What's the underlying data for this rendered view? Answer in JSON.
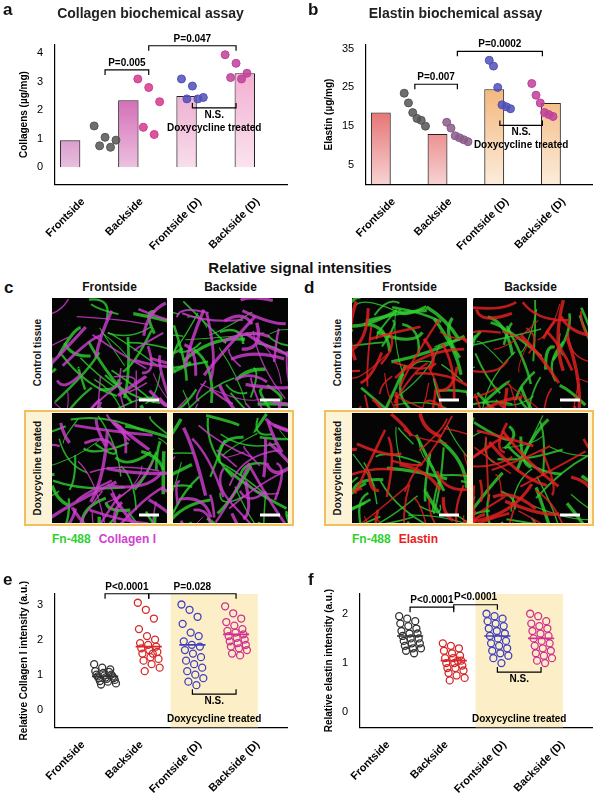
{
  "chart_data": [
    {
      "panel": "a",
      "type": "bar",
      "title": "Collagen biochemical assay",
      "y_label": "Collagens (µg/mg)",
      "categories": [
        "Frontside",
        "Backside",
        "Frontside (D)",
        "Backside (D)"
      ],
      "values": [
        0.95,
        2.35,
        2.5,
        3.3
      ],
      "colors": [
        "#b0278f",
        "#c02c96",
        "#e890c0",
        "#f0a0c8"
      ],
      "points": [
        [
          1.45,
          1.05,
          0.95,
          0.75,
          0.7
        ],
        [
          3.1,
          2.8,
          2.3,
          1.4,
          1.15
        ],
        [
          3.1,
          2.85,
          2.45,
          2.4,
          2.4
        ],
        [
          3.95,
          3.65,
          3.3,
          3.15,
          3.1
        ]
      ],
      "point_colors": [
        "#555555",
        "#d43a8c",
        "#5050b8",
        "#c0409a"
      ],
      "marker": "circle",
      "ylim": [
        -0.6,
        4.3
      ],
      "yticks": [
        0,
        1,
        2,
        3,
        4
      ],
      "grid": false,
      "annotations": [
        {
          "text": "P=0.005",
          "between": [
            "Frontside",
            "Backside"
          ]
        },
        {
          "text": "P=0.047",
          "between": [
            "Backside",
            "Backside (D)"
          ]
        }
      ],
      "annotations_below": [
        {
          "text": "N.S.",
          "between": [
            "Frontside (D)",
            "Backside (D)"
          ]
        }
      ],
      "highlight": {
        "text": "Doxycycline treated",
        "categories": [
          "Frontside (D)",
          "Backside (D)"
        ]
      }
    },
    {
      "panel": "b",
      "type": "bar",
      "title": "Elastin biochemical assay",
      "y_label": "Elastin (µg/mg)",
      "categories": [
        "Frontside",
        "Backside",
        "Frontside (D)",
        "Backside (D)"
      ],
      "values": [
        18.5,
        13,
        24.5,
        21
      ],
      "colors": [
        "#d81e1e",
        "#d81e1e",
        "#f0a050",
        "#f0a050"
      ],
      "points": [
        [
          23.5,
          21,
          18.5,
          17,
          16.5,
          15
        ],
        [
          16,
          14.5,
          12.5,
          12,
          11.5,
          11
        ],
        [
          32,
          30.5,
          25,
          20.5,
          20,
          19.5
        ],
        [
          26,
          23,
          21,
          18.5,
          18,
          17.5
        ]
      ],
      "point_colors": [
        "#555555",
        "#8a5a8a",
        "#5050b8",
        "#c0409a"
      ],
      "marker": "circle",
      "ylim": [
        0,
        36
      ],
      "yticks": [
        5,
        15,
        25,
        35
      ],
      "grid": false,
      "annotations": [
        {
          "text": "P=0.007",
          "between": [
            "Frontside",
            "Backside"
          ]
        },
        {
          "text": "P=0.0002",
          "between": [
            "Backside",
            "Backside (D)"
          ]
        }
      ],
      "annotations_below": [
        {
          "text": "N.S.",
          "between": [
            "Frontside (D)",
            "Backside (D)"
          ]
        }
      ],
      "highlight": {
        "text": "Doxycycline treated",
        "categories": [
          "Frontside (D)",
          "Backside (D)"
        ]
      }
    },
    {
      "panel": "e",
      "type": "scatter",
      "y_label": "Relative Collagen I intensity (a.u.)",
      "categories": [
        "Frontside",
        "Backside",
        "Frontside (D)",
        "Backside (D)"
      ],
      "points": [
        [
          1.3,
          1.2,
          1.15,
          1.1,
          1.05,
          1.0,
          1.0,
          0.98,
          0.95,
          0.95,
          0.92,
          0.9,
          0.9,
          0.88,
          0.85,
          0.82,
          0.8,
          0.75,
          0.72,
          1.08
        ],
        [
          3.05,
          2.85,
          2.6,
          2.3,
          2.1,
          2.0,
          1.9,
          1.85,
          1.8,
          1.75,
          1.7,
          1.65,
          1.6,
          1.5,
          1.45,
          1.4,
          1.3,
          1.2,
          1.1,
          1.6
        ],
        [
          3.0,
          2.85,
          2.65,
          2.45,
          2.2,
          2.1,
          1.95,
          1.85,
          1.8,
          1.7,
          1.6,
          1.5,
          1.4,
          1.3,
          1.2,
          1.1,
          1.0,
          0.9,
          0.8,
          0.7
        ],
        [
          2.95,
          2.75,
          2.6,
          2.5,
          2.4,
          2.3,
          2.25,
          2.2,
          2.15,
          2.1,
          2.05,
          2.0,
          1.95,
          1.9,
          1.85,
          1.8,
          1.75,
          1.7,
          1.6,
          1.55
        ]
      ],
      "means": [
        0.95,
        1.8,
        1.85,
        2.15
      ],
      "point_colors": [
        "#333333",
        "#d62828",
        "#4040c0",
        "#d03090"
      ],
      "marker": "open_circle",
      "ylim": [
        -0.5,
        3.3
      ],
      "yticks": [
        0,
        1,
        2,
        3
      ],
      "grid": false,
      "annotations": [
        {
          "text": "P<0.0001",
          "between": [
            "Frontside",
            "Backside"
          ]
        },
        {
          "text": "P=0.028",
          "between": [
            "Backside",
            "Backside (D)"
          ]
        }
      ],
      "annotations_below": [
        {
          "text": "N.S.",
          "between": [
            "Frontside (D)",
            "Backside (D)"
          ]
        }
      ],
      "highlight": {
        "text": "Doxycycline treated",
        "categories": [
          "Frontside (D)",
          "Backside (D)"
        ],
        "color": "#fcefc7"
      }
    },
    {
      "panel": "f",
      "type": "scatter",
      "y_label": "Relative elastin intensity (a.u.)",
      "categories": [
        "Frontside",
        "Backside",
        "Frontside (D)",
        "Backside (D)"
      ],
      "points": [
        [
          1.95,
          1.9,
          1.85,
          1.8,
          1.75,
          1.7,
          1.65,
          1.6,
          1.6,
          1.55,
          1.5,
          1.5,
          1.45,
          1.4,
          1.4,
          1.35,
          1.3,
          1.3,
          1.25,
          1.2
        ],
        [
          1.4,
          1.35,
          1.3,
          1.25,
          1.2,
          1.15,
          1.1,
          1.1,
          1.05,
          1.0,
          1.0,
          0.95,
          0.9,
          0.9,
          0.85,
          0.8,
          0.75,
          0.7,
          0.65,
          1.05
        ],
        [
          2.0,
          1.95,
          1.9,
          1.85,
          1.8,
          1.75,
          1.7,
          1.65,
          1.6,
          1.55,
          1.5,
          1.45,
          1.4,
          1.35,
          1.3,
          1.25,
          1.2,
          1.15,
          1.1,
          1.0
        ],
        [
          2.0,
          1.95,
          1.85,
          1.8,
          1.75,
          1.7,
          1.65,
          1.6,
          1.55,
          1.5,
          1.45,
          1.4,
          1.35,
          1.3,
          1.25,
          1.2,
          1.15,
          1.1,
          1.05,
          1.0
        ]
      ],
      "means": [
        1.55,
        1.05,
        1.55,
        1.5
      ],
      "point_colors": [
        "#333333",
        "#d62828",
        "#4040c0",
        "#d03090"
      ],
      "marker": "open_circle",
      "ylim": [
        -0.3,
        2.4
      ],
      "yticks": [
        0,
        1,
        2
      ],
      "grid": false,
      "annotations": [
        {
          "text": "P<0.0001",
          "between": [
            "Frontside",
            "Backside"
          ]
        },
        {
          "text": "P<0.0001",
          "between": [
            "Backside",
            "Frontside (D)"
          ]
        }
      ],
      "annotations_below": [
        {
          "text": "N.S.",
          "between": [
            "Frontside (D)",
            "Backside (D)"
          ]
        }
      ],
      "highlight": {
        "text": "Doxycycline treated",
        "categories": [
          "Frontside (D)",
          "Backside (D)"
        ],
        "color": "#fcefc7"
      }
    }
  ],
  "figure": {
    "title": "Relative signal intensities",
    "panels": [
      {
        "label": "c",
        "columns": [
          "Frontside",
          "Backside"
        ],
        "rows": [
          "Control tissue",
          "Doxycycline treated"
        ],
        "stains": [
          {
            "text": "Fn-488",
            "color": "#2fd02f"
          },
          {
            "text": "Collagen I",
            "color": "#d040d0"
          }
        ]
      },
      {
        "label": "d",
        "columns": [
          "Frontside",
          "Backside"
        ],
        "rows": [
          "Control tissue",
          "Doxycycline treated"
        ],
        "stains": [
          {
            "text": "Fn-488",
            "color": "#2fd02f"
          },
          {
            "text": "Elastin",
            "color": "#e82020"
          }
        ]
      }
    ]
  }
}
